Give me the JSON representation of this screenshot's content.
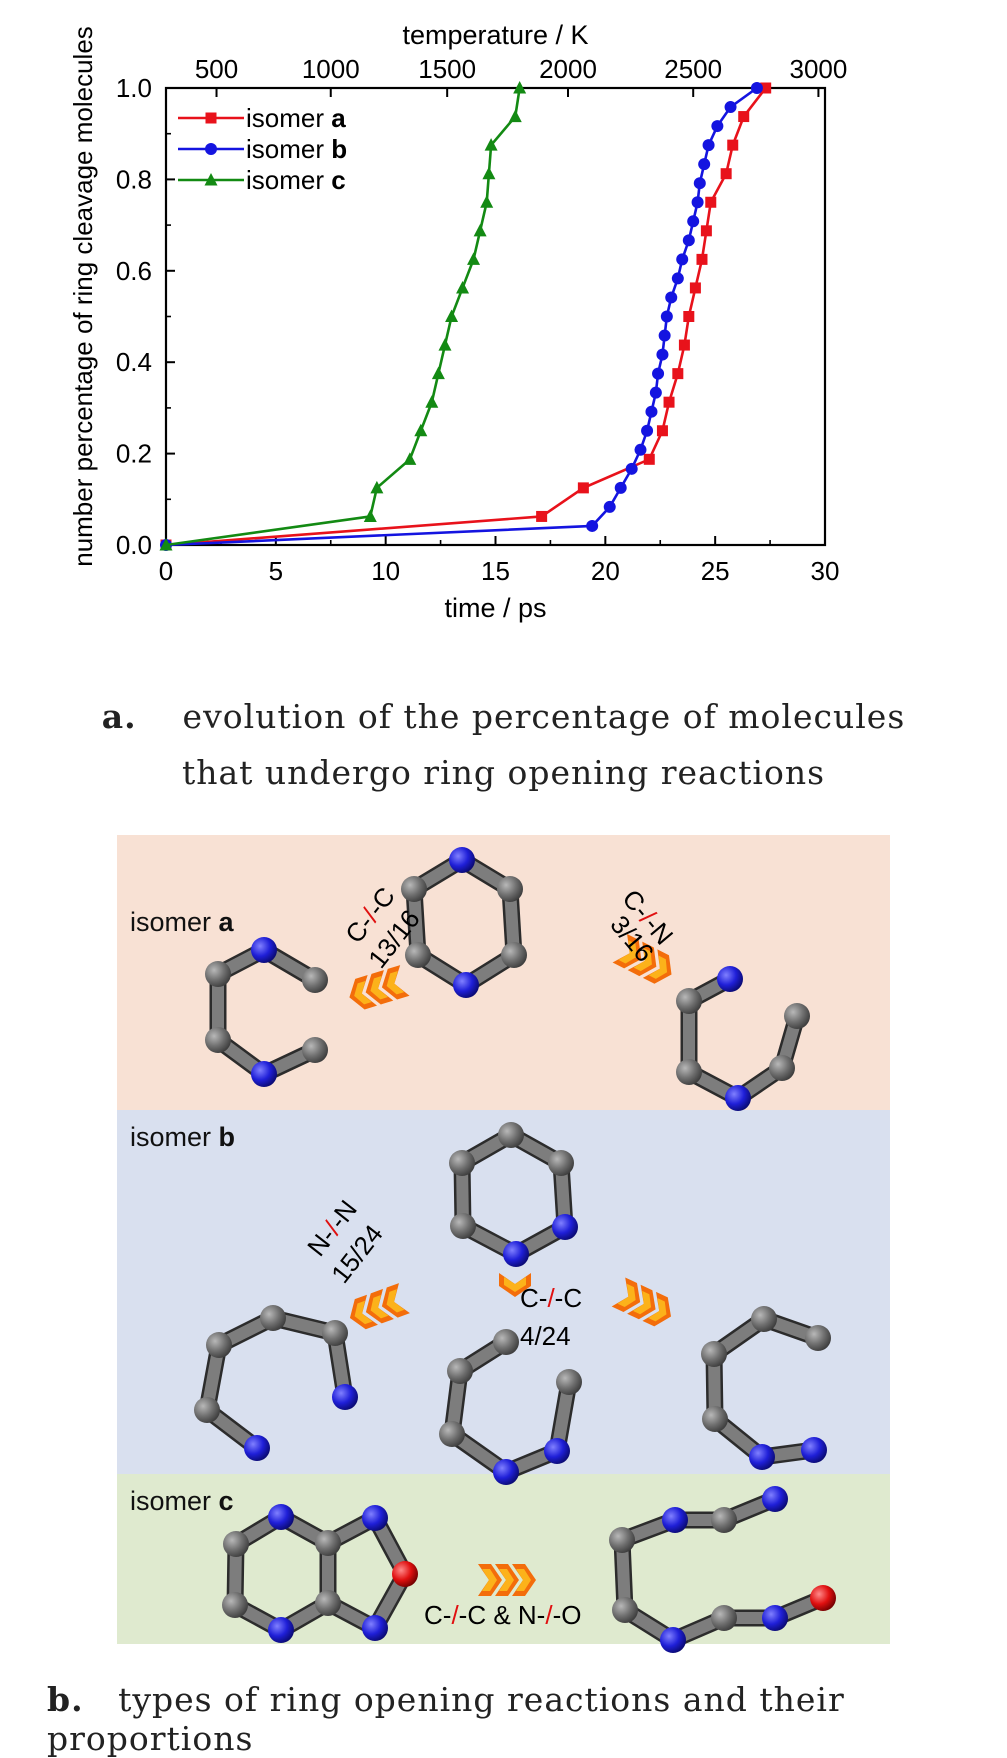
{
  "chart_data": {
    "type": "line",
    "xlabel": "time / ps",
    "top_axis_label": "temperature / K",
    "ylabel": "number percentage of ring cleavage molecules",
    "xlim": [
      0,
      30
    ],
    "ylim": [
      0,
      1.0
    ],
    "x_ticks": [
      "0",
      "5",
      "10",
      "15",
      "20",
      "25",
      "30"
    ],
    "y_ticks": [
      "0.0",
      "0.2",
      "0.4",
      "0.6",
      "0.8",
      "1.0"
    ],
    "top_ticks": [
      {
        "label": "500",
        "x": 2.3
      },
      {
        "label": "1000",
        "x": 7.5
      },
      {
        "label": "1500",
        "x": 12.8
      },
      {
        "label": "2000",
        "x": 18.3
      },
      {
        "label": "2500",
        "x": 24.0
      },
      {
        "label": "3000",
        "x": 29.7
      }
    ],
    "legend_position": "top-left",
    "series": [
      {
        "name_prefix": "isomer ",
        "name_bold": "a",
        "color": "#e8121b",
        "marker": "square",
        "points": [
          [
            0,
            0
          ],
          [
            17.1,
            0.0625
          ],
          [
            19.0,
            0.125
          ],
          [
            22.0,
            0.1875
          ],
          [
            22.6,
            0.25
          ],
          [
            22.9,
            0.3125
          ],
          [
            23.3,
            0.375
          ],
          [
            23.6,
            0.4375
          ],
          [
            23.8,
            0.5
          ],
          [
            24.1,
            0.5625
          ],
          [
            24.4,
            0.625
          ],
          [
            24.6,
            0.6875
          ],
          [
            24.8,
            0.75
          ],
          [
            25.5,
            0.8125
          ],
          [
            25.8,
            0.875
          ],
          [
            26.3,
            0.9375
          ],
          [
            27.3,
            1.0
          ]
        ]
      },
      {
        "name_prefix": "isomer ",
        "name_bold": "b",
        "color": "#1414e0",
        "marker": "circle",
        "points": [
          [
            0,
            0
          ],
          [
            19.4,
            0.0417
          ],
          [
            20.2,
            0.0833
          ],
          [
            20.7,
            0.125
          ],
          [
            21.2,
            0.1667
          ],
          [
            21.6,
            0.2083
          ],
          [
            21.9,
            0.25
          ],
          [
            22.1,
            0.2917
          ],
          [
            22.3,
            0.3333
          ],
          [
            22.4,
            0.375
          ],
          [
            22.6,
            0.4167
          ],
          [
            22.7,
            0.4583
          ],
          [
            22.8,
            0.5
          ],
          [
            23.0,
            0.5417
          ],
          [
            23.3,
            0.5833
          ],
          [
            23.5,
            0.625
          ],
          [
            23.8,
            0.6667
          ],
          [
            24.0,
            0.7083
          ],
          [
            24.2,
            0.75
          ],
          [
            24.3,
            0.7917
          ],
          [
            24.5,
            0.8333
          ],
          [
            24.7,
            0.875
          ],
          [
            25.1,
            0.9167
          ],
          [
            25.7,
            0.9583
          ],
          [
            26.9,
            1.0
          ]
        ]
      },
      {
        "name_prefix": "isomer ",
        "name_bold": "c",
        "color": "#138a13",
        "marker": "triangle",
        "points": [
          [
            0,
            0
          ],
          [
            9.3,
            0.0625
          ],
          [
            9.6,
            0.125
          ],
          [
            11.1,
            0.1875
          ],
          [
            11.6,
            0.25
          ],
          [
            12.1,
            0.3125
          ],
          [
            12.4,
            0.375
          ],
          [
            12.7,
            0.4375
          ],
          [
            13.0,
            0.5
          ],
          [
            13.5,
            0.5625
          ],
          [
            14.0,
            0.625
          ],
          [
            14.3,
            0.6875
          ],
          [
            14.6,
            0.75
          ],
          [
            14.7,
            0.8125
          ],
          [
            14.8,
            0.875
          ],
          [
            15.9,
            0.9375
          ],
          [
            16.1,
            1.0
          ]
        ]
      }
    ]
  },
  "captions": {
    "a_letter": "a.",
    "a_line1": "evolution of the percentage of molecules",
    "a_line2": "that undergo ring opening reactions",
    "b_letter": "b.",
    "b_text": "types of ring opening reactions and their proportions"
  },
  "scheme": {
    "colors": {
      "panel_a": "#f8e1d4",
      "panel_b": "#d9e0ef",
      "panel_c": "#dfeacf",
      "carbon": "#6f6f6f",
      "nitrogen": "#1f1fd8",
      "oxygen": "#e01010",
      "arrow_outer": "#f36d0b",
      "arrow_inner": "#fcb21a",
      "slash": "#e01010"
    },
    "panel_a": {
      "label_prefix": "isomer ",
      "label_bold": "a",
      "left_bond_l": "C-",
      "left_bond_slash": "/",
      "left_bond_r": "-C",
      "left_ratio": "13/16",
      "right_bond_l": "C-",
      "right_bond_slash": "/",
      "right_bond_r": "-N",
      "right_ratio": "3/16"
    },
    "panel_b": {
      "label_prefix": "isomer ",
      "label_bold": "b",
      "left_bond_l": "N-",
      "left_bond_slash": "/",
      "left_bond_r": "-N",
      "left_ratio": "15/24",
      "center_bond_l": "C-",
      "center_bond_slash": "/",
      "center_bond_r": "-C",
      "center_ratio": "4/24"
    },
    "panel_c": {
      "label_prefix": "isomer ",
      "label_bold": "c",
      "bond_a_l": "C-",
      "bond_a_slash": "/",
      "bond_a_r": "-C",
      "bond_join": " & ",
      "bond_b_l": "N-",
      "bond_b_slash": "/",
      "bond_b_r": "-O"
    }
  }
}
